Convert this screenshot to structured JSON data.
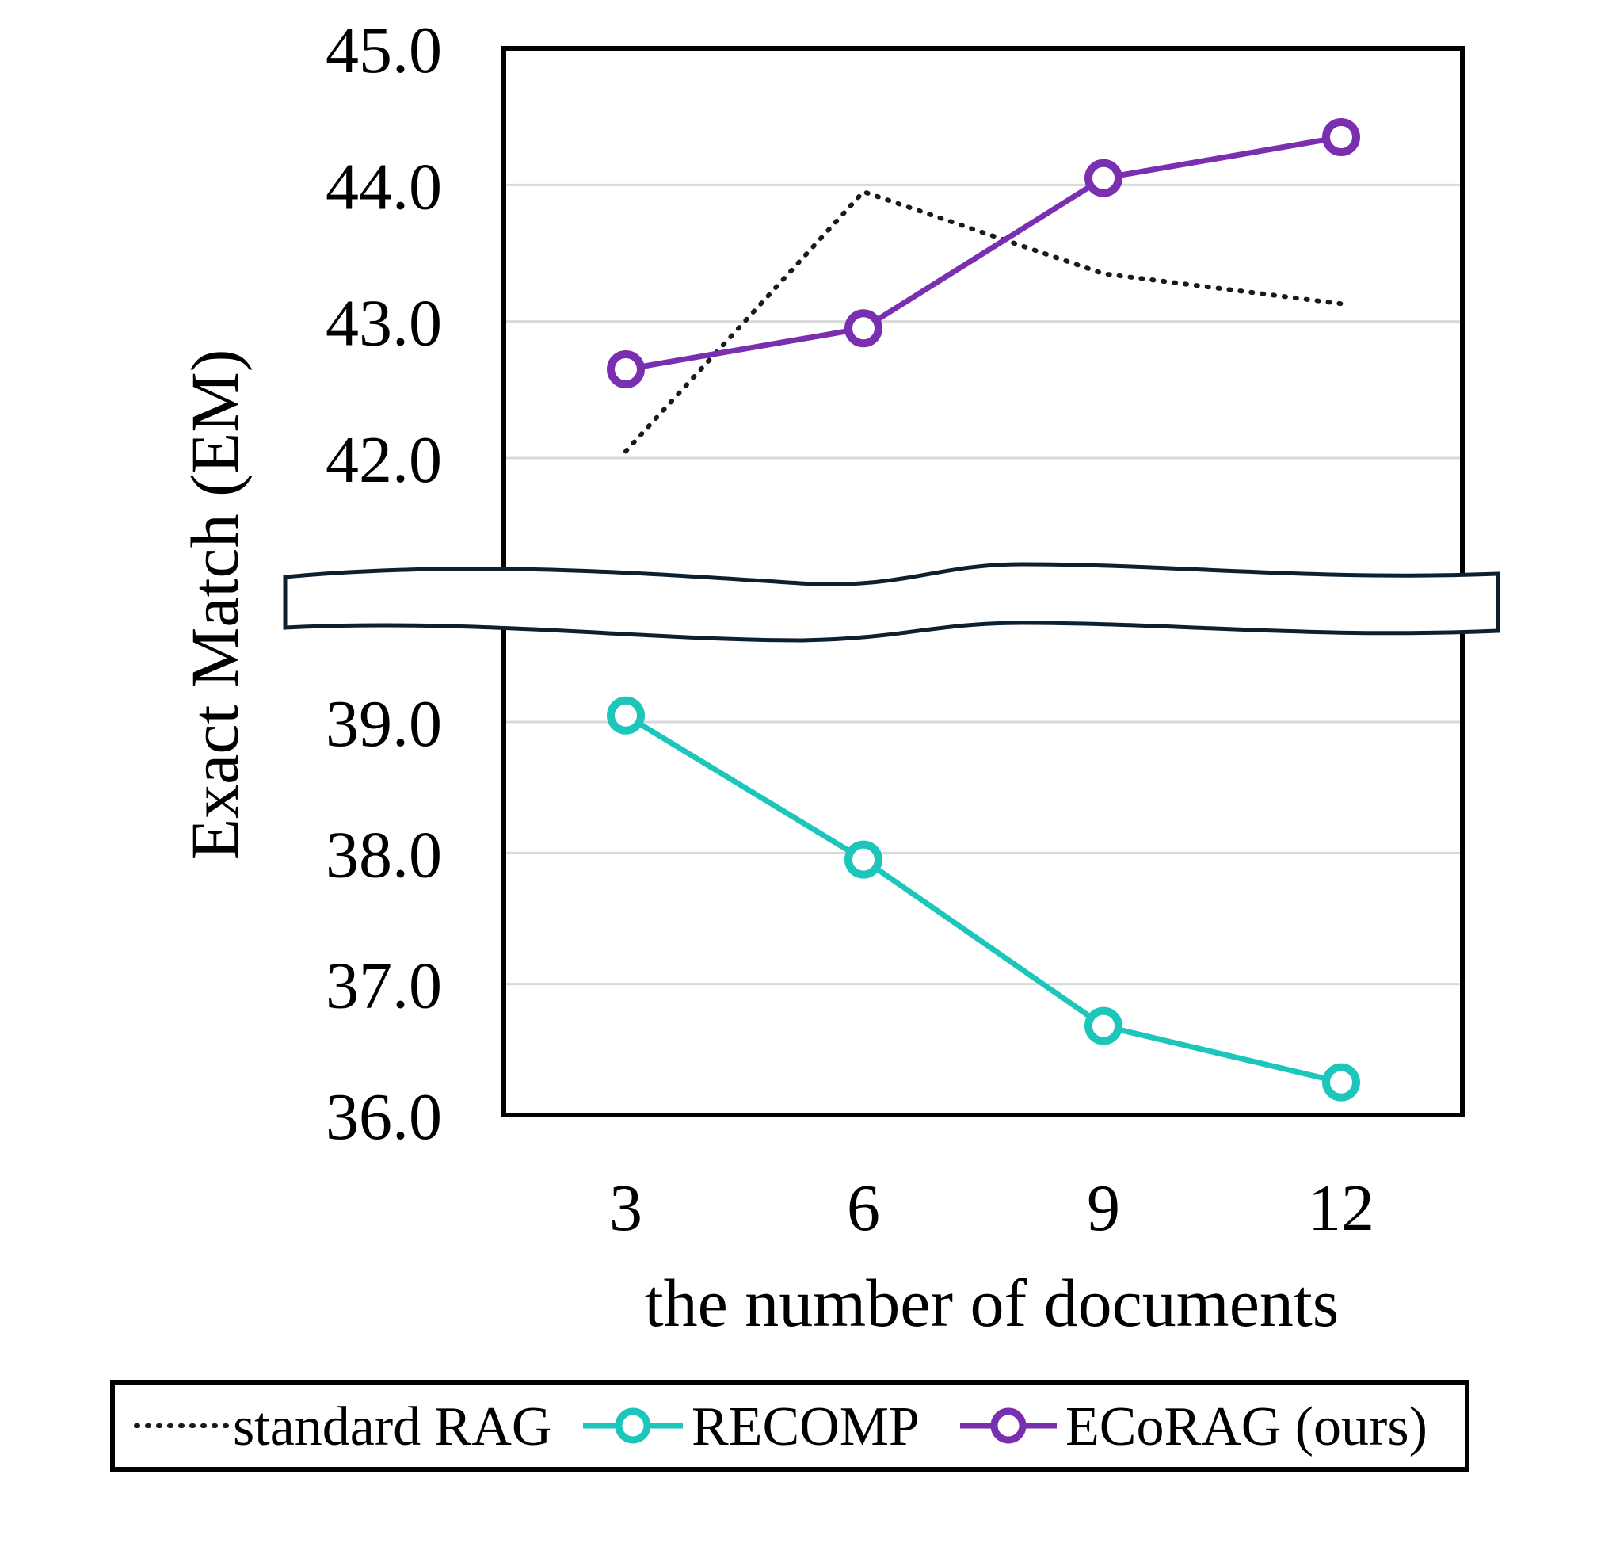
{
  "chart_data": {
    "type": "line",
    "title": "",
    "xlabel": "the number of documents",
    "ylabel": "Exact Match (EM)",
    "x": [
      3,
      6,
      9,
      12
    ],
    "x_tick_labels": [
      "3",
      "6",
      "9",
      "12"
    ],
    "y_axis": {
      "broken": true,
      "upper_segment_range": [
        42.0,
        45.0
      ],
      "lower_segment_range": [
        36.0,
        39.0
      ],
      "upper_ticks": [
        "42.0",
        "43.0",
        "44.0",
        "45.0"
      ],
      "lower_ticks": [
        "36.0",
        "37.0",
        "38.0",
        "39.0"
      ]
    },
    "grid": true,
    "legend_position": "bottom",
    "series": [
      {
        "name": "standard RAG",
        "values": [
          42.05,
          43.95,
          43.35,
          43.13
        ],
        "style": "dotted",
        "color": "#1a1a1a",
        "markers": false
      },
      {
        "name": "RECOMP",
        "values": [
          39.05,
          37.95,
          36.68,
          36.25
        ],
        "style": "solid",
        "color": "#1cc6bb",
        "markers": true
      },
      {
        "name": "ECoRAG (ours)",
        "values": [
          42.65,
          42.95,
          44.05,
          44.35
        ],
        "style": "solid",
        "color": "#7a2fb0",
        "markers": true
      }
    ]
  }
}
